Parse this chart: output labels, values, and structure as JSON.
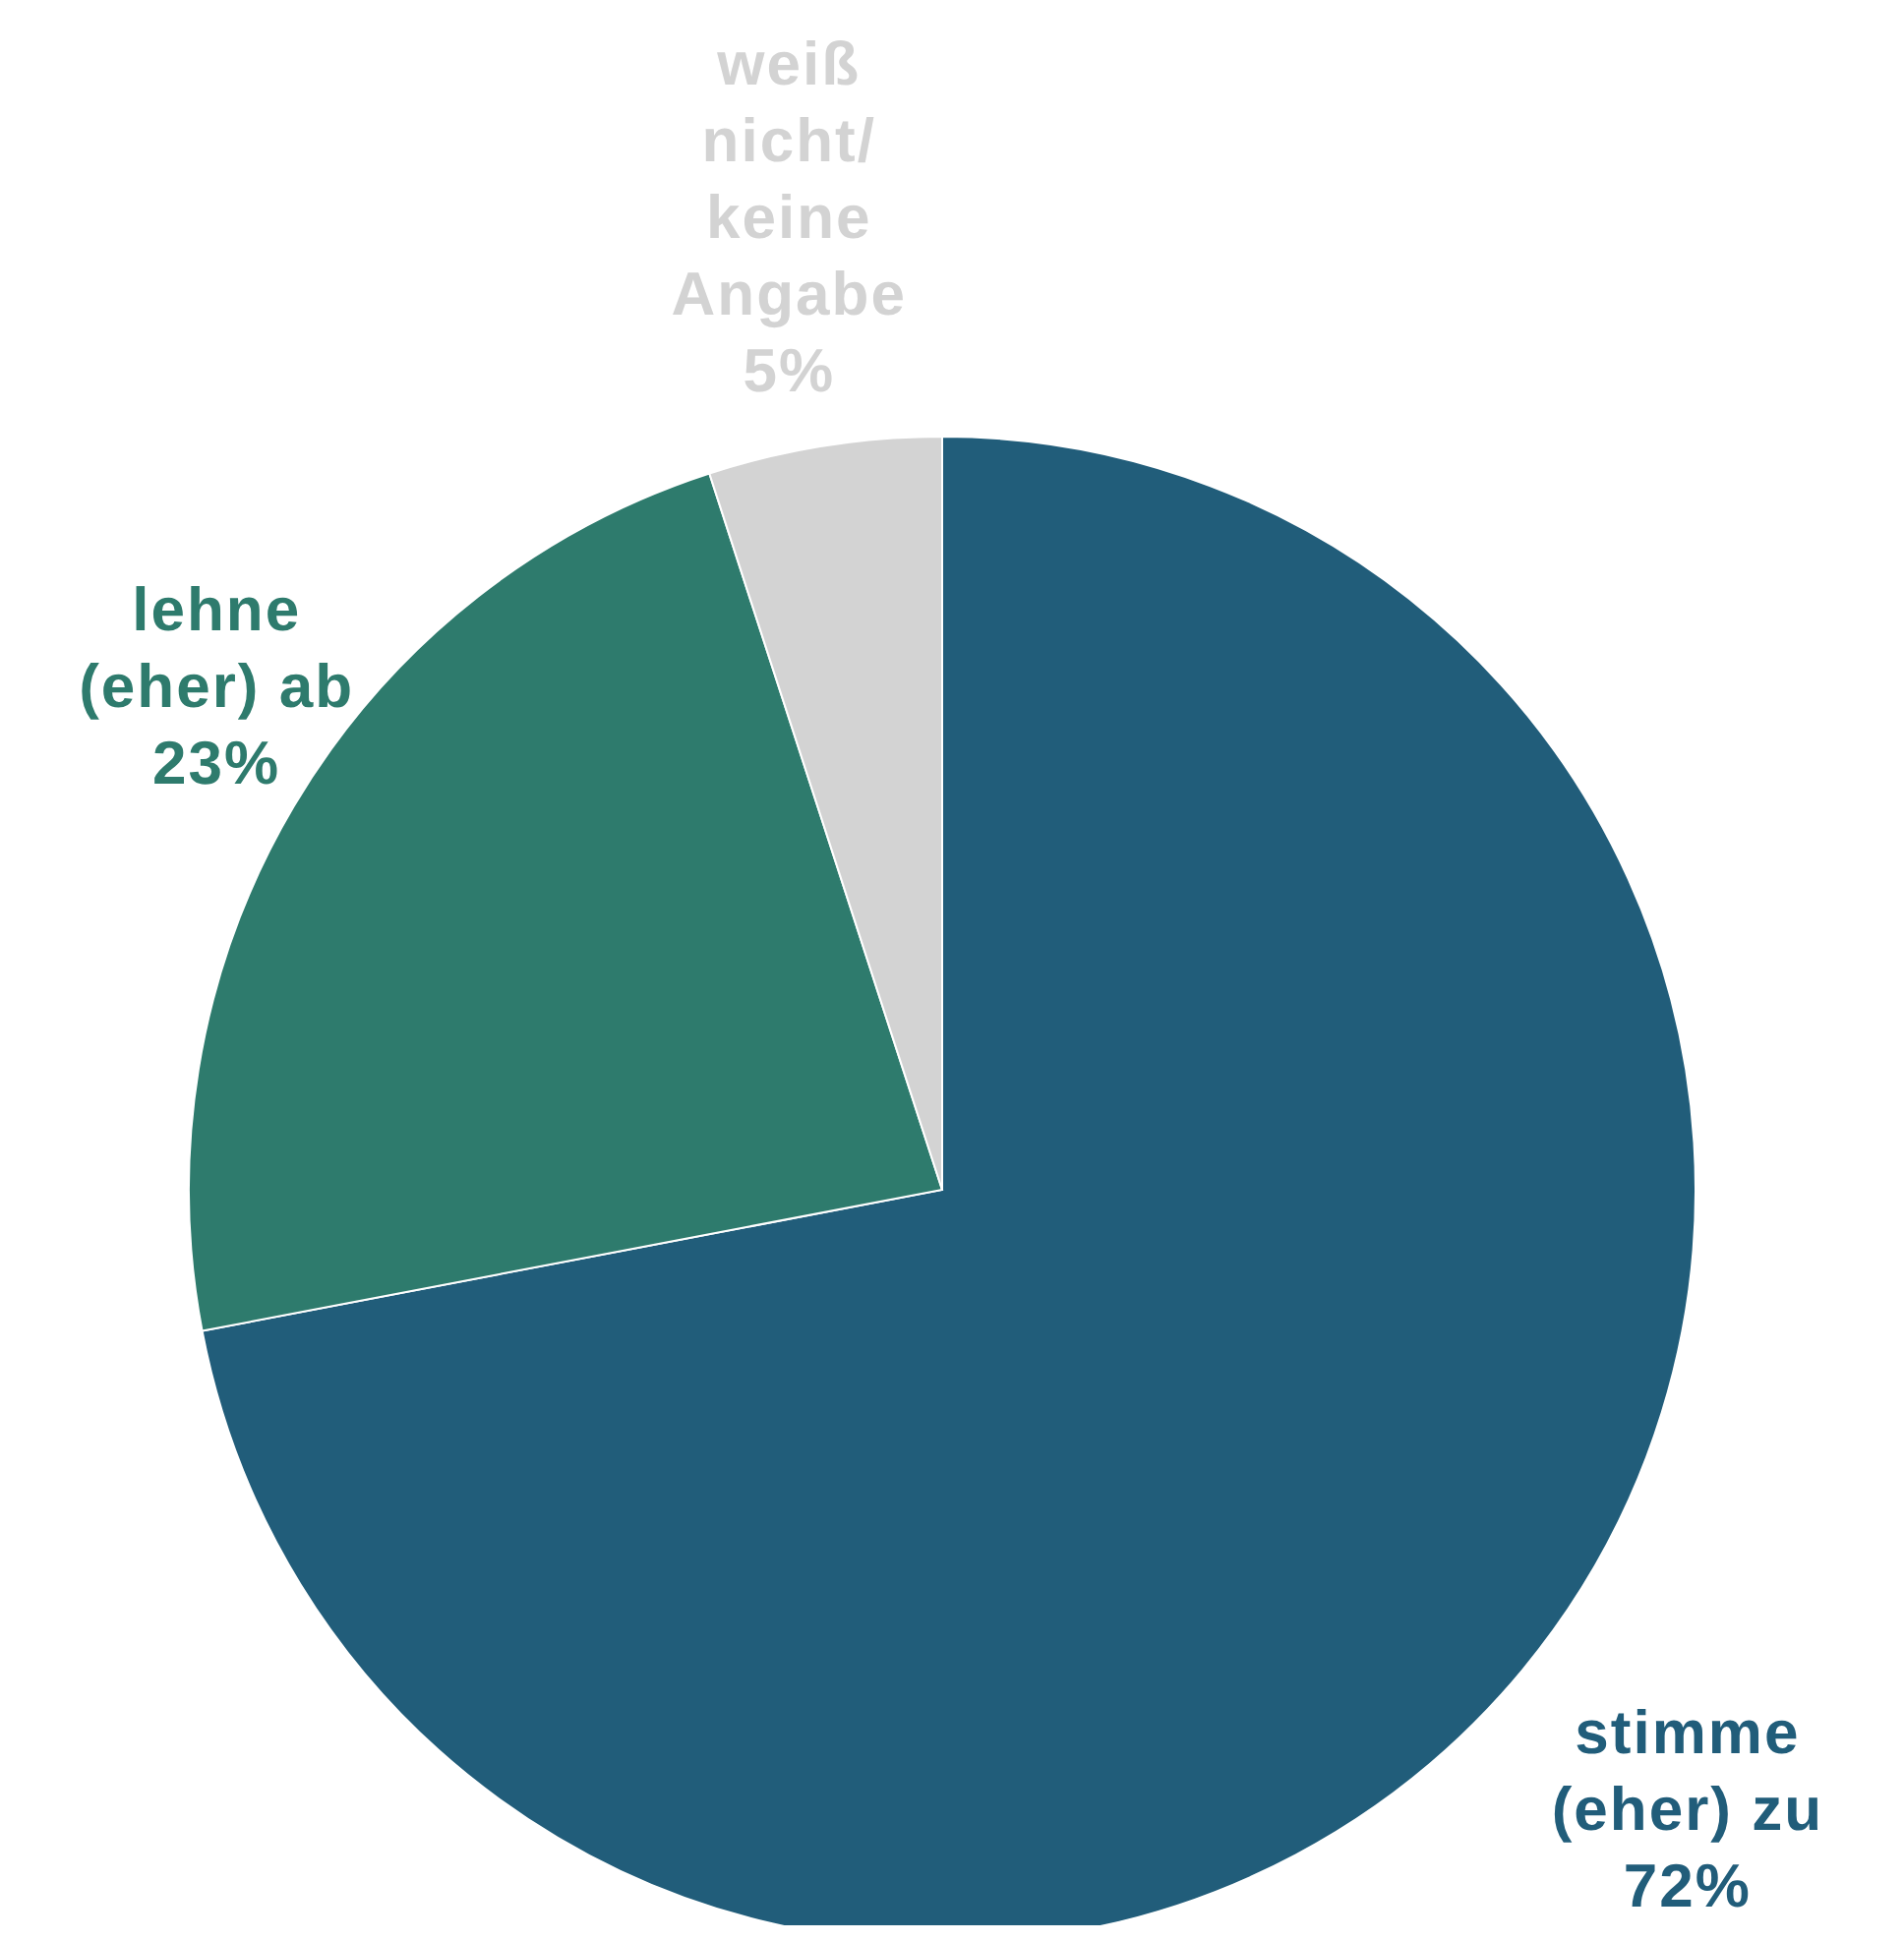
{
  "chart_data": {
    "type": "pie",
    "categories": [
      "stimme (eher) zu",
      "lehne (eher) ab",
      "weiß nicht/ keine Angabe"
    ],
    "values": [
      72,
      23,
      5
    ],
    "colors": [
      "#215d7a",
      "#2e7b6d",
      "#d3d3d3"
    ],
    "value_labels": [
      "72%",
      "23%",
      "5%"
    ]
  }
}
